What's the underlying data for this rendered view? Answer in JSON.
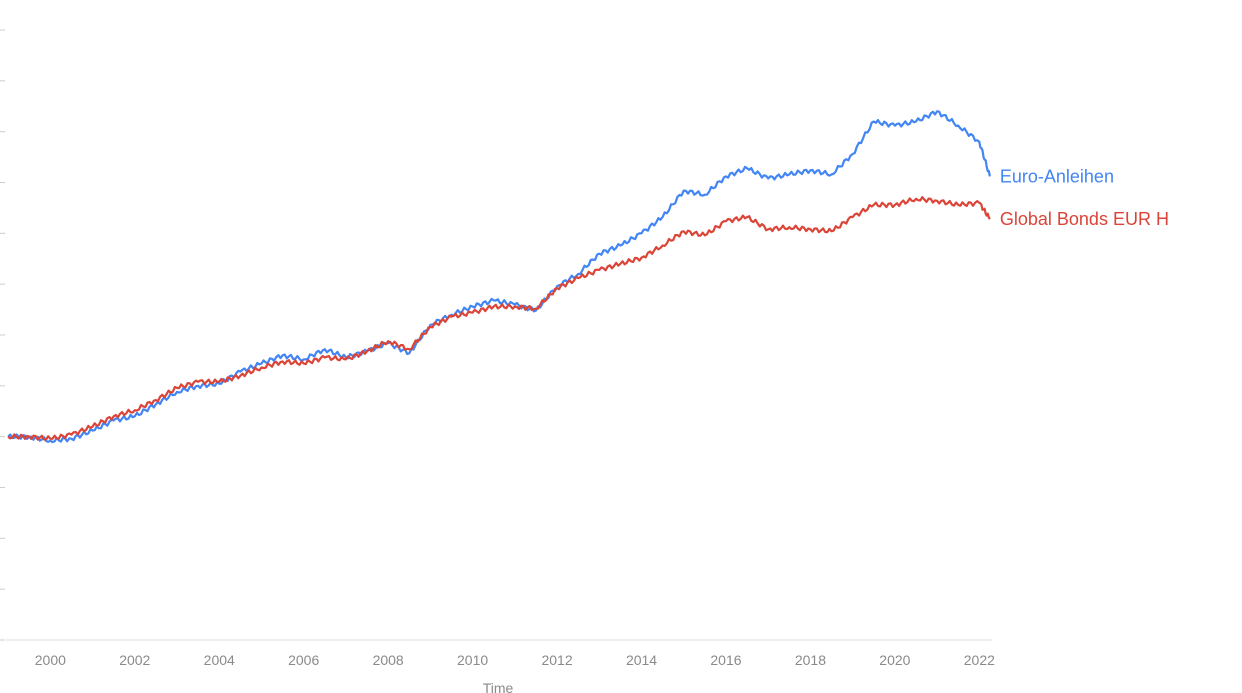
{
  "chart_data": {
    "type": "line",
    "xlabel": "Time",
    "ylabel": "",
    "title": "",
    "x_ticks": [
      "2000",
      "2002",
      "2004",
      "2006",
      "2008",
      "2010",
      "2012",
      "2014",
      "2016",
      "2018",
      "2020",
      "2022"
    ],
    "xlim": [
      1998.95,
      2022.3
    ],
    "ylim": [
      -100,
      200
    ],
    "grid": false,
    "legend": "end-of-line labels",
    "series": [
      {
        "name": "Euro-Anleihen",
        "color": "#4285f4",
        "points": [
          [
            1999.0,
            0
          ],
          [
            1999.5,
            0
          ],
          [
            2000.0,
            -2
          ],
          [
            2000.5,
            -1
          ],
          [
            2001.0,
            3
          ],
          [
            2001.5,
            8
          ],
          [
            2002.0,
            10
          ],
          [
            2002.5,
            16
          ],
          [
            2003.0,
            22
          ],
          [
            2003.5,
            25
          ],
          [
            2004.0,
            26
          ],
          [
            2004.5,
            32
          ],
          [
            2005.0,
            36
          ],
          [
            2005.5,
            40
          ],
          [
            2006.0,
            38
          ],
          [
            2006.5,
            43
          ],
          [
            2007.0,
            39
          ],
          [
            2007.5,
            42
          ],
          [
            2008.0,
            46
          ],
          [
            2008.5,
            41
          ],
          [
            2009.0,
            55
          ],
          [
            2009.5,
            60
          ],
          [
            2010.0,
            64
          ],
          [
            2010.5,
            67
          ],
          [
            2011.0,
            65
          ],
          [
            2011.5,
            62
          ],
          [
            2012.0,
            74
          ],
          [
            2012.5,
            80
          ],
          [
            2013.0,
            90
          ],
          [
            2013.5,
            94
          ],
          [
            2014.0,
            100
          ],
          [
            2014.5,
            108
          ],
          [
            2015.0,
            121
          ],
          [
            2015.5,
            119
          ],
          [
            2016.0,
            128
          ],
          [
            2016.5,
            132
          ],
          [
            2017.0,
            127
          ],
          [
            2017.5,
            129
          ],
          [
            2018.0,
            131
          ],
          [
            2018.5,
            129
          ],
          [
            2019.0,
            139
          ],
          [
            2019.5,
            155
          ],
          [
            2020.0,
            153
          ],
          [
            2020.5,
            155
          ],
          [
            2021.0,
            160
          ],
          [
            2021.5,
            153
          ],
          [
            2022.0,
            145
          ],
          [
            2022.25,
            128
          ]
        ]
      },
      {
        "name": "Global Bonds EUR H",
        "color": "#db4437",
        "points": [
          [
            1999.0,
            0
          ],
          [
            1999.5,
            0
          ],
          [
            2000.0,
            -1
          ],
          [
            2000.5,
            1
          ],
          [
            2001.0,
            5
          ],
          [
            2001.5,
            10
          ],
          [
            2002.0,
            13
          ],
          [
            2002.5,
            18
          ],
          [
            2003.0,
            24
          ],
          [
            2003.5,
            27
          ],
          [
            2004.0,
            27
          ],
          [
            2004.5,
            30
          ],
          [
            2005.0,
            34
          ],
          [
            2005.5,
            37
          ],
          [
            2006.0,
            36
          ],
          [
            2006.5,
            39
          ],
          [
            2007.0,
            38
          ],
          [
            2007.5,
            42
          ],
          [
            2008.0,
            47
          ],
          [
            2008.5,
            43
          ],
          [
            2009.0,
            54
          ],
          [
            2009.5,
            59
          ],
          [
            2010.0,
            61
          ],
          [
            2010.5,
            64
          ],
          [
            2011.0,
            64
          ],
          [
            2011.5,
            63
          ],
          [
            2012.0,
            73
          ],
          [
            2012.5,
            78
          ],
          [
            2013.0,
            82
          ],
          [
            2013.5,
            85
          ],
          [
            2014.0,
            88
          ],
          [
            2014.5,
            94
          ],
          [
            2015.0,
            101
          ],
          [
            2015.5,
            99
          ],
          [
            2016.0,
            106
          ],
          [
            2016.5,
            108
          ],
          [
            2017.0,
            102
          ],
          [
            2017.5,
            103
          ],
          [
            2018.0,
            102
          ],
          [
            2018.5,
            101
          ],
          [
            2019.0,
            108
          ],
          [
            2019.5,
            114
          ],
          [
            2020.0,
            114
          ],
          [
            2020.5,
            117
          ],
          [
            2021.0,
            116
          ],
          [
            2021.5,
            114
          ],
          [
            2022.0,
            115
          ],
          [
            2022.25,
            107
          ]
        ]
      }
    ]
  }
}
